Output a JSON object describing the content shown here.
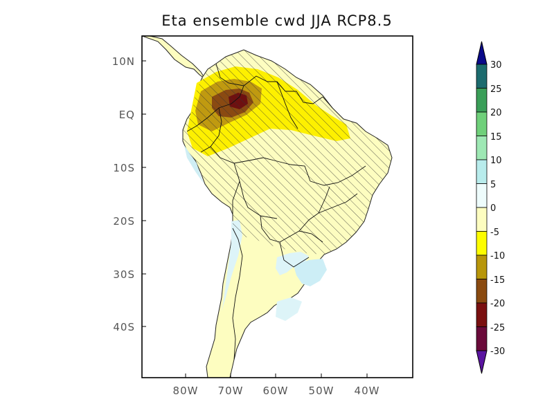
{
  "title": "Eta ensemble cwd JJA RCP8.5",
  "map": {
    "lat_ticks": [
      "10N",
      "EQ",
      "10S",
      "20S",
      "30S",
      "40S"
    ],
    "lon_ticks": [
      "80W",
      "70W",
      "60W",
      "50W",
      "40W"
    ],
    "colors": {
      "ocean": "#ffffff",
      "frame": "#000000",
      "coast": "#222222",
      "border": "#111111",
      "hatch": "#333333"
    }
  },
  "colorbar": {
    "labels": [
      "30",
      "25",
      "20",
      "15",
      "10",
      "5",
      "0",
      "-5",
      "-10",
      "-15",
      "-20",
      "-25",
      "-30"
    ],
    "top_arrow_color": "#0a0a8a",
    "bottom_arrow_color": "#5a14a0",
    "colors": [
      "#1c6b6e",
      "#3a9e58",
      "#6fd07a",
      "#9ee8b4",
      "#b8ecec",
      "#eefcfc",
      "#fdfdc0",
      "#fdfd00",
      "#b8960a",
      "#8a4a10",
      "#7a1010",
      "#6a0a3a"
    ]
  }
}
